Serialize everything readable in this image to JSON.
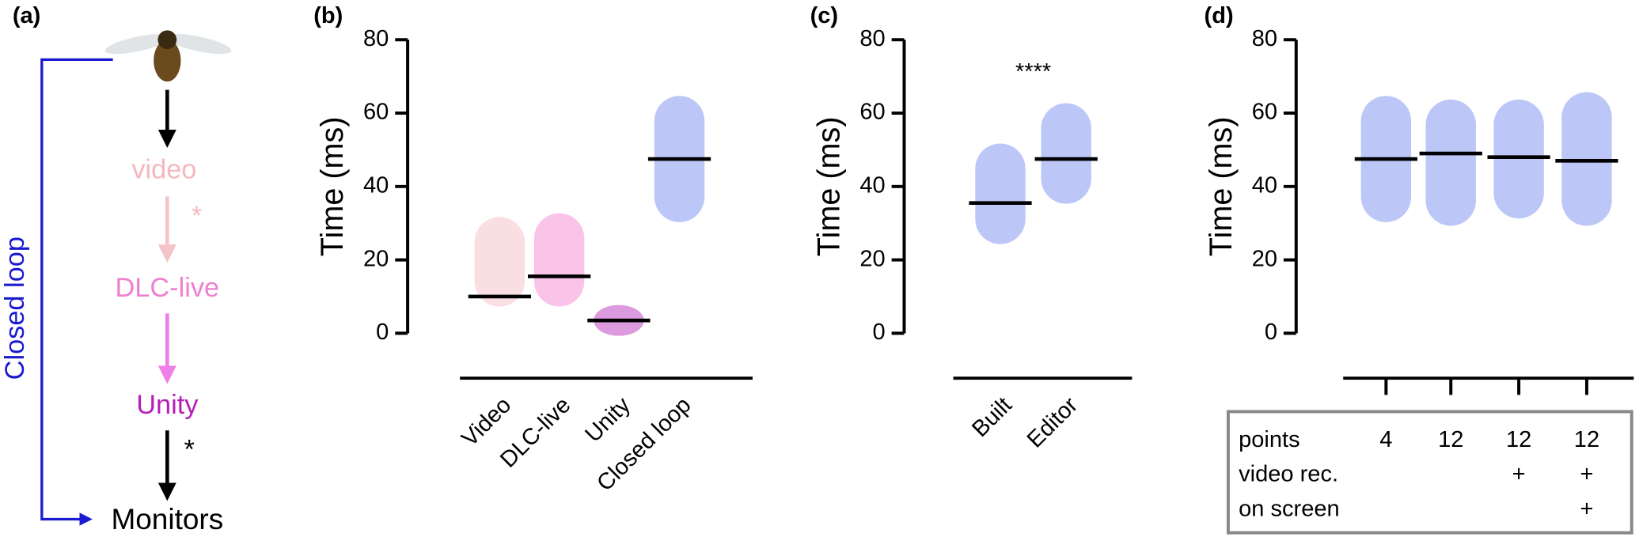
{
  "diagram": {
    "label": "(a)",
    "side_label": "Closed loop",
    "nodes": [
      {
        "label": "video",
        "color": "#f4b8bf"
      },
      {
        "label": "DLC-live",
        "color": "#ef7fd0"
      },
      {
        "label": "Unity",
        "color": "#b51fb8"
      },
      {
        "label": "Monitors",
        "color": "#000000"
      }
    ],
    "marks": [
      "*",
      "*"
    ]
  },
  "chart_data": [
    {
      "type": "strip",
      "label": "(b)",
      "ylabel": "Time (ms)",
      "ylim": [
        0,
        80
      ],
      "yticks": [
        0,
        20,
        40,
        60,
        80
      ],
      "categories": [
        "Video",
        "DLC-live",
        "Unity",
        "Closed loop"
      ],
      "colors": [
        "#f4b8bf",
        "#f27ccb",
        "#b51fb8",
        "#6a82f0"
      ],
      "values": [
        10,
        15.5,
        3.5,
        47.5
      ],
      "min": [
        9,
        9,
        1,
        32
      ],
      "max": [
        30,
        31,
        6,
        63
      ]
    },
    {
      "type": "strip",
      "label": "(c)",
      "ylabel": "Time (ms)",
      "ylim": [
        0,
        80
      ],
      "yticks": [
        0,
        20,
        40,
        60,
        80
      ],
      "annotation": "****",
      "categories": [
        "Built",
        "Editor"
      ],
      "colors": [
        "#6a82f0",
        "#6a82f0"
      ],
      "values": [
        35.5,
        47.5
      ],
      "min": [
        26,
        37
      ],
      "max": [
        50,
        61
      ]
    },
    {
      "type": "strip",
      "label": "(d)",
      "ylabel": "Time (ms)",
      "ylim": [
        0,
        80
      ],
      "yticks": [
        0,
        20,
        40,
        60,
        80
      ],
      "categories": [
        null,
        null,
        null,
        null
      ],
      "colors": [
        "#6a82f0",
        "#6a82f0",
        "#6a82f0",
        "#6a82f0"
      ],
      "values": [
        47.5,
        49,
        48,
        47
      ],
      "min": [
        32,
        31,
        33,
        31
      ],
      "max": [
        63,
        62,
        62,
        64
      ],
      "table": {
        "rows": [
          [
            "points",
            4,
            12,
            12,
            12
          ],
          [
            "video rec.",
            null,
            null,
            "+",
            "+"
          ],
          [
            "on screen",
            null,
            null,
            null,
            "+"
          ]
        ]
      }
    }
  ]
}
